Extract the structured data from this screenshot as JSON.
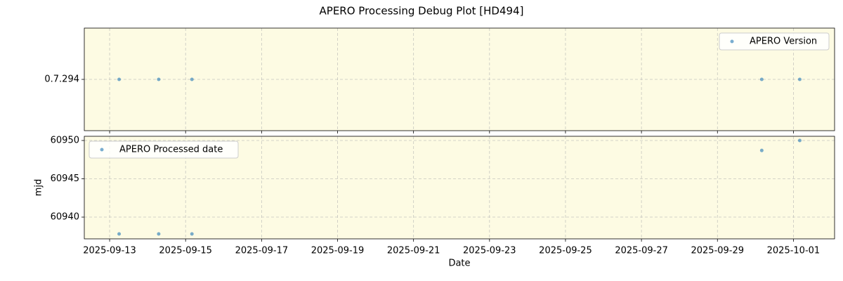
{
  "title": "APERO Processing Debug Plot [HD494]",
  "chart_data": [
    {
      "type": "scatter",
      "categorical_y": true,
      "x": [
        "2025-09-13T06:00",
        "2025-09-14T07:00",
        "2025-09-15T04:00",
        "2025-09-30T04:00",
        "2025-10-01T04:00"
      ],
      "series": [
        {
          "name": "APERO Version",
          "color": "#1f77b4",
          "values": [
            "0.7.294",
            "0.7.294",
            "0.7.294",
            "0.7.294",
            "0.7.294"
          ]
        }
      ],
      "xlim": [
        "2025-09-12T08:00",
        "2025-10-02T02:00"
      ],
      "xticks": [
        "2025-09-13",
        "2025-09-15",
        "2025-09-17",
        "2025-09-19",
        "2025-09-21",
        "2025-09-23",
        "2025-09-25",
        "2025-09-27",
        "2025-09-29",
        "2025-10-01"
      ],
      "yticks": [
        "0.7.294"
      ],
      "grid": true,
      "legend": "upper right",
      "background": "#fdfbe3"
    },
    {
      "type": "scatter",
      "x": [
        "2025-09-13T06:00",
        "2025-09-14T07:00",
        "2025-09-15T04:00",
        "2025-09-30T04:00",
        "2025-10-01T04:00"
      ],
      "series": [
        {
          "name": "APERO Processed date",
          "color": "#1f77b4",
          "values": [
            60937.8,
            60937.8,
            60937.8,
            60948.7,
            60950.0
          ]
        }
      ],
      "xlim": [
        "2025-09-12T08:00",
        "2025-10-02T02:00"
      ],
      "xticks": [
        "2025-09-13",
        "2025-09-15",
        "2025-09-17",
        "2025-09-19",
        "2025-09-21",
        "2025-09-23",
        "2025-09-25",
        "2025-09-27",
        "2025-09-29",
        "2025-10-01"
      ],
      "ylim": [
        60937.16,
        60950.55
      ],
      "yticks": [
        60940,
        60945,
        60950
      ],
      "xlabel": "Date",
      "ylabel": "mjd",
      "grid": true,
      "legend": "upper left",
      "background": "#fdfbe3"
    }
  ]
}
